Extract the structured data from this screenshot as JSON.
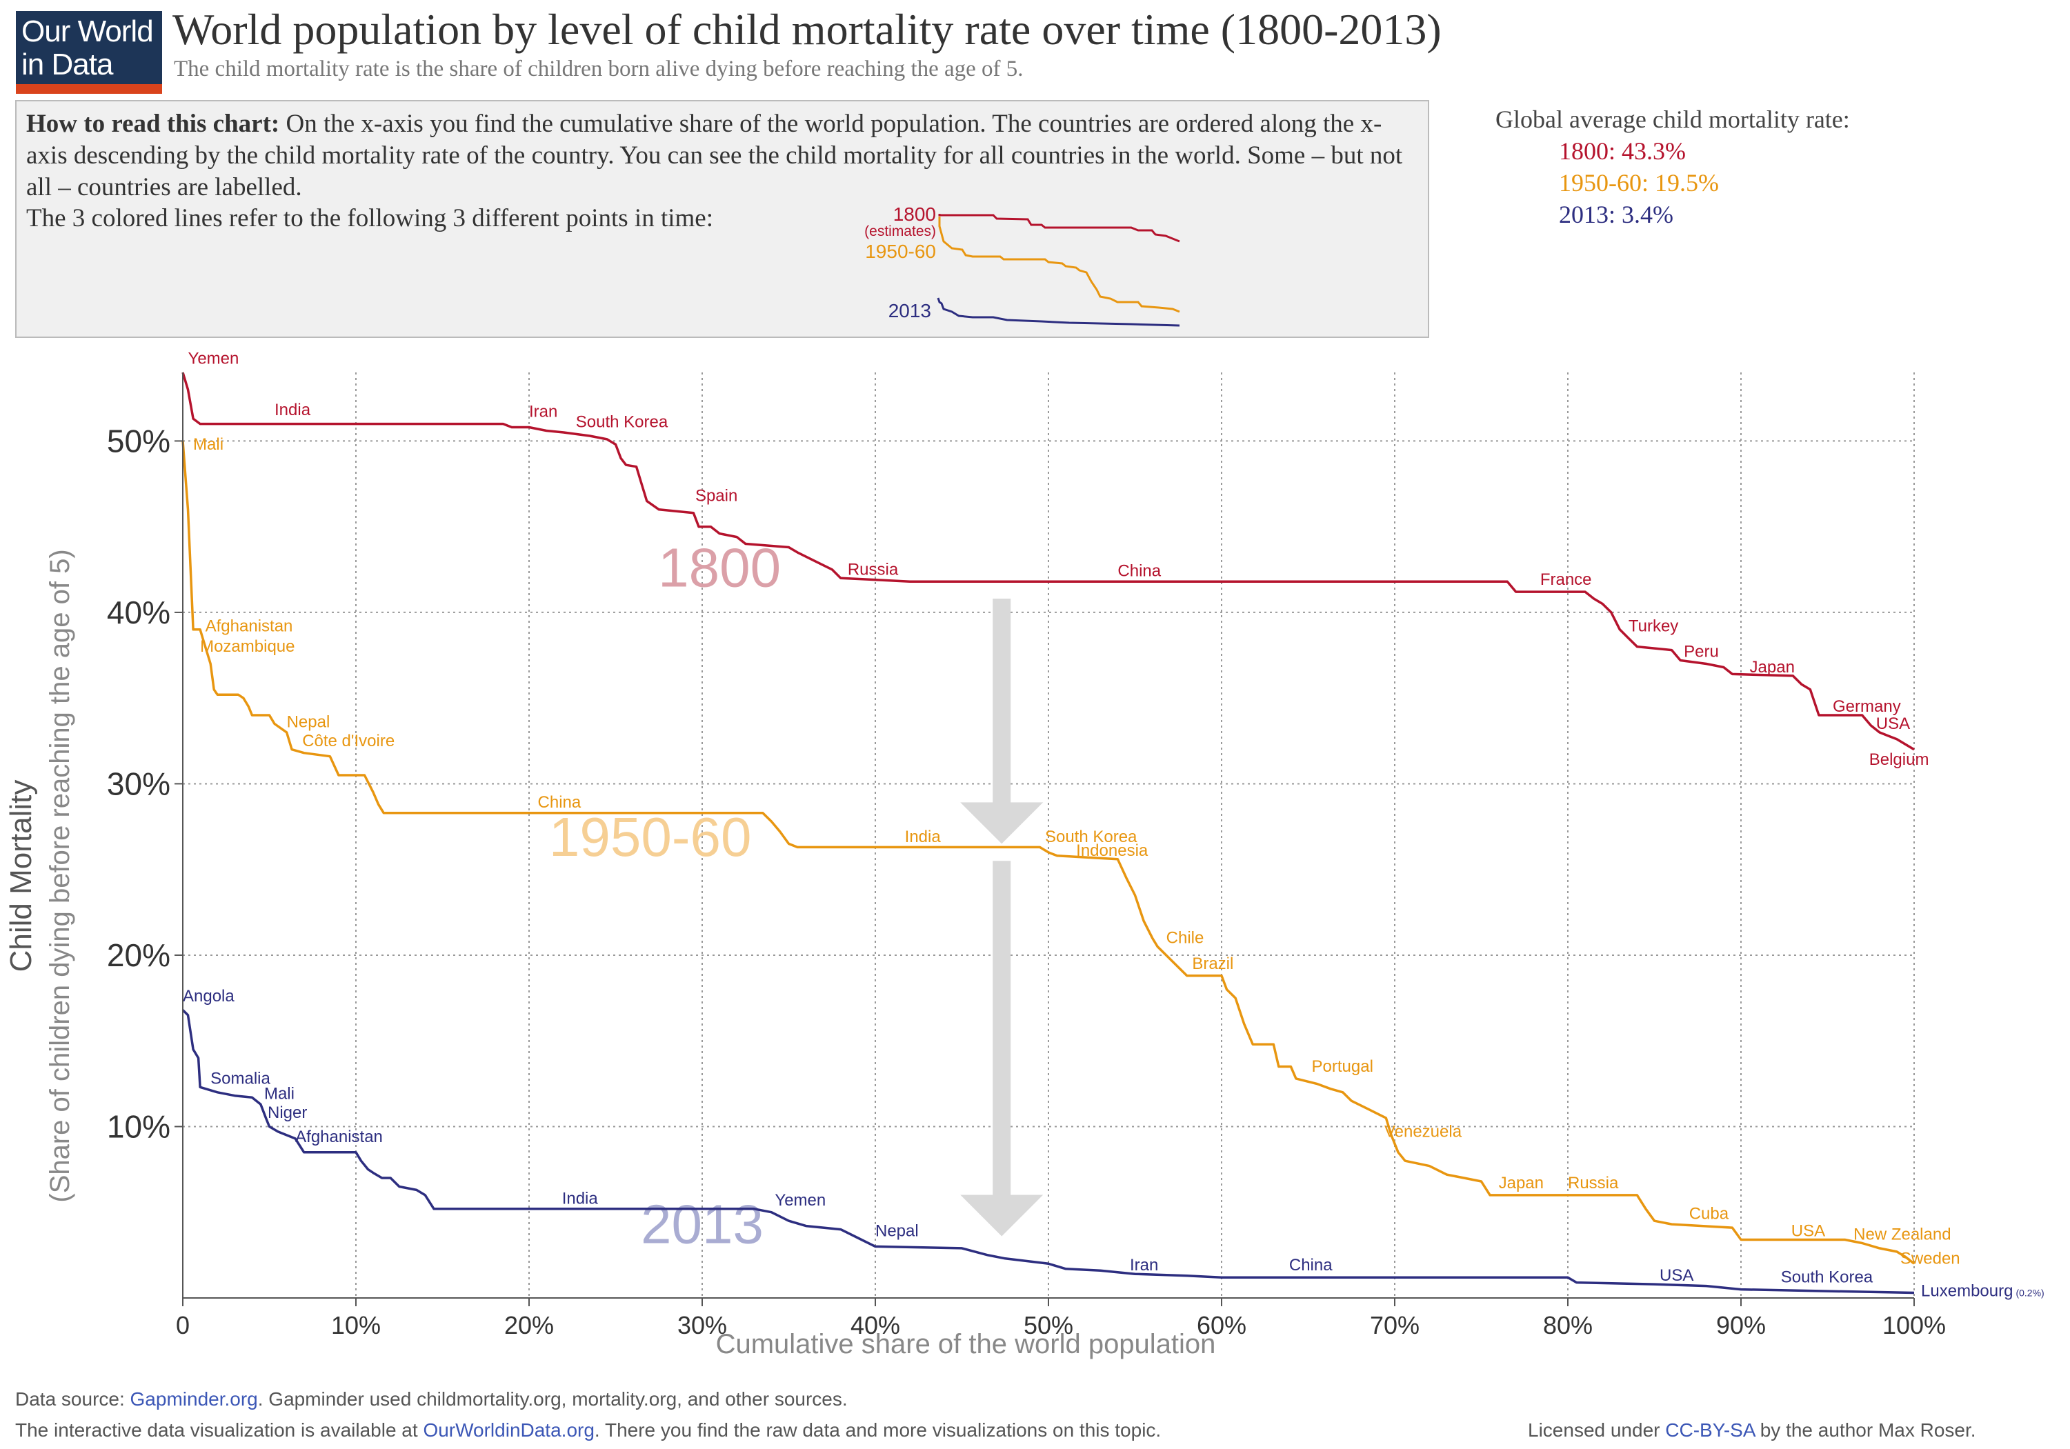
{
  "logo": {
    "line1": "Our World",
    "line2": "in Data"
  },
  "title": "World population by level of child mortality rate over time (1800-2013)",
  "subtitle": "The child mortality rate is the share of children born alive dying before reaching the age of 5.",
  "howto": {
    "bold": "How to read this chart:",
    "text": " On the x-axis you find the cumulative share of the world population. The countries are ordered along the x-axis descending by the child mortality rate of the country. You can see the child mortality for all countries in the world. Some – but not all – countries are labelled.",
    "line3": "The 3 colored lines refer to the following 3 different points in time:",
    "legend": {
      "l1800": "1800",
      "estimates": "(estimates)",
      "l1950": "1950-60",
      "l2013": "2013"
    }
  },
  "global_avg": {
    "heading": "Global average child mortality rate:",
    "v1800": "1800: 43.3%",
    "v1950": "1950-60: 19.5%",
    "v2013": "2013: 3.4%"
  },
  "colors": {
    "s1800": "#b5132d",
    "s1950": "#e89610",
    "s2013": "#2d2e80",
    "big1800": "#dba0a8",
    "big1950": "#f6cf94",
    "big2013": "#a9acd2",
    "arrow": "#d9d9d9"
  },
  "chart_data": {
    "type": "line",
    "xlabel": "Cumulative share of the world population",
    "ylabel": "Child Mortality",
    "ylabel2": "(Share of children dying before reaching the age of 5)",
    "xlim": [
      0,
      100
    ],
    "ylim": [
      0,
      54
    ],
    "grid": true,
    "x_ticks": [
      "0",
      "10%",
      "20%",
      "30%",
      "40%",
      "50%",
      "60%",
      "70%",
      "80%",
      "90%",
      "100%"
    ],
    "y_ticks": [
      {
        "v": 10,
        "label": "10%"
      },
      {
        "v": 20,
        "label": "20%"
      },
      {
        "v": 30,
        "label": "30%"
      },
      {
        "v": 40,
        "label": "40%"
      },
      {
        "v": 50,
        "label": "50%"
      }
    ],
    "big_labels": [
      {
        "text": "1800",
        "x": 31,
        "y": 41.5,
        "series": "1800"
      },
      {
        "text": "1950-60",
        "x": 27,
        "y": 25.8,
        "series": "1950-60"
      },
      {
        "text": "2013",
        "x": 30,
        "y": 3.2,
        "series": "2013"
      }
    ],
    "series": [
      {
        "name": "1800",
        "points": [
          [
            0,
            54
          ],
          [
            0.3,
            53
          ],
          [
            0.6,
            51.3
          ],
          [
            1,
            51
          ],
          [
            18.5,
            51
          ],
          [
            19,
            50.8
          ],
          [
            20,
            50.8
          ],
          [
            21,
            50.6
          ],
          [
            22,
            50.5
          ],
          [
            23.5,
            50.3
          ],
          [
            24.5,
            50.1
          ],
          [
            25,
            49.8
          ],
          [
            25.3,
            49
          ],
          [
            25.6,
            48.6
          ],
          [
            26.2,
            48.5
          ],
          [
            26.5,
            47.5
          ],
          [
            26.8,
            46.5
          ],
          [
            27.5,
            46
          ],
          [
            29.5,
            45.8
          ],
          [
            29.8,
            45
          ],
          [
            30.5,
            45
          ],
          [
            31,
            44.6
          ],
          [
            32,
            44.4
          ],
          [
            32.5,
            44
          ],
          [
            35,
            43.8
          ],
          [
            35.5,
            43.5
          ],
          [
            36.5,
            43
          ],
          [
            37.5,
            42.5
          ],
          [
            38,
            42
          ],
          [
            42,
            41.8
          ],
          [
            76.5,
            41.8
          ],
          [
            77,
            41.2
          ],
          [
            81,
            41.2
          ],
          [
            81.5,
            40.8
          ],
          [
            82,
            40.5
          ],
          [
            82.5,
            40
          ],
          [
            83,
            39
          ],
          [
            83.5,
            38.5
          ],
          [
            84,
            38
          ],
          [
            86,
            37.8
          ],
          [
            86.5,
            37.2
          ],
          [
            88,
            37
          ],
          [
            89,
            36.8
          ],
          [
            89.5,
            36.4
          ],
          [
            93,
            36.3
          ],
          [
            93.5,
            35.8
          ],
          [
            94,
            35.5
          ],
          [
            94.5,
            34
          ],
          [
            97,
            34
          ],
          [
            97.5,
            33.4
          ],
          [
            98,
            33
          ],
          [
            98.5,
            32.8
          ],
          [
            99,
            32.6
          ],
          [
            99.5,
            32.3
          ],
          [
            100,
            32
          ]
        ],
        "labels": [
          {
            "text": "Yemen",
            "x": 0.3,
            "y": 54.5,
            "anchor": "start"
          },
          {
            "text": "India",
            "x": 5.3,
            "y": 51.5,
            "anchor": "start"
          },
          {
            "text": "Iran",
            "x": 20.0,
            "y": 51.4,
            "anchor": "start"
          },
          {
            "text": "South Korea",
            "x": 22.7,
            "y": 50.8,
            "anchor": "start"
          },
          {
            "text": "Spain",
            "x": 29.6,
            "y": 46.5,
            "anchor": "start"
          },
          {
            "text": "Russia",
            "x": 38.4,
            "y": 42.2,
            "anchor": "start"
          },
          {
            "text": "China",
            "x": 54.0,
            "y": 42.1,
            "anchor": "start"
          },
          {
            "text": "France",
            "x": 78.4,
            "y": 41.6,
            "anchor": "start"
          },
          {
            "text": "Turkey",
            "x": 83.5,
            "y": 38.9,
            "anchor": "start"
          },
          {
            "text": "Peru",
            "x": 86.7,
            "y": 37.4,
            "anchor": "start"
          },
          {
            "text": "Japan",
            "x": 90.5,
            "y": 36.5,
            "anchor": "start"
          },
          {
            "text": "Germany",
            "x": 95.3,
            "y": 34.2,
            "anchor": "start"
          },
          {
            "text": "USA",
            "x": 97.8,
            "y": 33.2,
            "anchor": "start"
          },
          {
            "text": "Belgium",
            "x": 97.4,
            "y": 31.1,
            "anchor": "start"
          }
        ]
      },
      {
        "name": "1950-60",
        "points": [
          [
            0,
            50
          ],
          [
            0.3,
            46
          ],
          [
            0.6,
            39
          ],
          [
            1,
            39
          ],
          [
            1.3,
            38
          ],
          [
            1.6,
            37
          ],
          [
            1.8,
            35.5
          ],
          [
            2,
            35.2
          ],
          [
            3.2,
            35.2
          ],
          [
            3.5,
            35
          ],
          [
            3.8,
            34.5
          ],
          [
            4,
            34
          ],
          [
            5,
            34
          ],
          [
            5.3,
            33.5
          ],
          [
            6,
            33
          ],
          [
            6.3,
            32
          ],
          [
            7,
            31.8
          ],
          [
            8.5,
            31.6
          ],
          [
            9,
            30.5
          ],
          [
            10.5,
            30.5
          ],
          [
            11,
            29.5
          ],
          [
            11.3,
            28.8
          ],
          [
            11.6,
            28.3
          ],
          [
            33.5,
            28.3
          ],
          [
            34,
            27.8
          ],
          [
            34.5,
            27.2
          ],
          [
            35,
            26.5
          ],
          [
            35.5,
            26.3
          ],
          [
            49.5,
            26.3
          ],
          [
            50,
            26
          ],
          [
            50.5,
            25.8
          ],
          [
            54,
            25.6
          ],
          [
            54.5,
            24.5
          ],
          [
            55,
            23.5
          ],
          [
            55.5,
            22
          ],
          [
            56,
            21
          ],
          [
            56.3,
            20.5
          ],
          [
            56.8,
            20
          ],
          [
            57.3,
            19.5
          ],
          [
            58,
            18.8
          ],
          [
            60,
            18.8
          ],
          [
            60.3,
            18
          ],
          [
            60.8,
            17.5
          ],
          [
            61.3,
            16
          ],
          [
            61.8,
            14.8
          ],
          [
            63,
            14.8
          ],
          [
            63.3,
            13.5
          ],
          [
            64,
            13.5
          ],
          [
            64.3,
            12.8
          ],
          [
            65.5,
            12.5
          ],
          [
            66.3,
            12.2
          ],
          [
            67,
            12
          ],
          [
            67.5,
            11.5
          ],
          [
            68.5,
            11
          ],
          [
            69.5,
            10.5
          ],
          [
            69.8,
            9.5
          ],
          [
            70.2,
            8.5
          ],
          [
            70.6,
            8
          ],
          [
            72,
            7.7
          ],
          [
            73,
            7.2
          ],
          [
            74,
            7
          ],
          [
            75,
            6.8
          ],
          [
            75.5,
            6
          ],
          [
            84,
            6
          ],
          [
            84.5,
            5.2
          ],
          [
            85,
            4.5
          ],
          [
            86,
            4.3
          ],
          [
            89.5,
            4.1
          ],
          [
            90,
            3.4
          ],
          [
            96,
            3.4
          ],
          [
            97,
            3.2
          ],
          [
            98,
            2.9
          ],
          [
            99,
            2.7
          ],
          [
            99.5,
            2.4
          ],
          [
            100,
            2
          ]
        ],
        "labels": [
          {
            "text": "Mali",
            "x": 0.6,
            "y": 49.5,
            "anchor": "start"
          },
          {
            "text": "Afghanistan",
            "x": 1.3,
            "y": 38.9,
            "anchor": "start"
          },
          {
            "text": "Mozambique",
            "x": 1.0,
            "y": 37.7,
            "anchor": "start"
          },
          {
            "text": "Nepal",
            "x": 6.0,
            "y": 33.3,
            "anchor": "start"
          },
          {
            "text": "Côte d'Ivoire",
            "x": 6.9,
            "y": 32.2,
            "anchor": "start"
          },
          {
            "text": "China",
            "x": 20.5,
            "y": 28.6,
            "anchor": "start"
          },
          {
            "text": "India",
            "x": 41.7,
            "y": 26.6,
            "anchor": "start"
          },
          {
            "text": "South Korea",
            "x": 49.8,
            "y": 26.6,
            "anchor": "start"
          },
          {
            "text": "Indonesia",
            "x": 51.6,
            "y": 25.8,
            "anchor": "start"
          },
          {
            "text": "Chile",
            "x": 56.8,
            "y": 20.7,
            "anchor": "start"
          },
          {
            "text": "Brazil",
            "x": 58.3,
            "y": 19.2,
            "anchor": "start"
          },
          {
            "text": "Portugal",
            "x": 65.2,
            "y": 13.2,
            "anchor": "start"
          },
          {
            "text": "Venezuela",
            "x": 69.4,
            "y": 9.4,
            "anchor": "start"
          },
          {
            "text": "Japan",
            "x": 76.0,
            "y": 6.4,
            "anchor": "start"
          },
          {
            "text": "Russia",
            "x": 80.0,
            "y": 6.4,
            "anchor": "start"
          },
          {
            "text": "Cuba",
            "x": 87.0,
            "y": 4.6,
            "anchor": "start"
          },
          {
            "text": "USA",
            "x": 92.9,
            "y": 3.6,
            "anchor": "start"
          },
          {
            "text": "New Zealand",
            "x": 96.5,
            "y": 3.4,
            "anchor": "start"
          },
          {
            "text": "Sweden",
            "x": 99.2,
            "y": 2.0,
            "anchor": "start"
          }
        ]
      },
      {
        "name": "2013",
        "points": [
          [
            0,
            16.8
          ],
          [
            0.3,
            16.5
          ],
          [
            0.6,
            14.5
          ],
          [
            0.9,
            14
          ],
          [
            1,
            12.3
          ],
          [
            2,
            12
          ],
          [
            3,
            11.8
          ],
          [
            4,
            11.7
          ],
          [
            4.5,
            11.3
          ],
          [
            4.8,
            10.5
          ],
          [
            5,
            10
          ],
          [
            5.5,
            9.7
          ],
          [
            6.5,
            9.3
          ],
          [
            7,
            8.5
          ],
          [
            10,
            8.5
          ],
          [
            10.3,
            8
          ],
          [
            10.7,
            7.5
          ],
          [
            11,
            7.3
          ],
          [
            11.5,
            7
          ],
          [
            12,
            7
          ],
          [
            12.5,
            6.5
          ],
          [
            13.5,
            6.3
          ],
          [
            14,
            6
          ],
          [
            14.5,
            5.2
          ],
          [
            15,
            5.2
          ],
          [
            33,
            5.2
          ],
          [
            34,
            5
          ],
          [
            35,
            4.5
          ],
          [
            36,
            4.2
          ],
          [
            38,
            4
          ],
          [
            39,
            3.5
          ],
          [
            40,
            3
          ],
          [
            45,
            2.9
          ],
          [
            46.5,
            2.5
          ],
          [
            47.5,
            2.3
          ],
          [
            50,
            2
          ],
          [
            51,
            1.7
          ],
          [
            53,
            1.6
          ],
          [
            55,
            1.4
          ],
          [
            58,
            1.3
          ],
          [
            60,
            1.2
          ],
          [
            80,
            1.2
          ],
          [
            80.5,
            0.9
          ],
          [
            85,
            0.8
          ],
          [
            88,
            0.7
          ],
          [
            90,
            0.5
          ],
          [
            95,
            0.4
          ],
          [
            100,
            0.3
          ]
        ],
        "labels": [
          {
            "text": "Angola",
            "x": 0.0,
            "y": 17.3,
            "anchor": "start"
          },
          {
            "text": "Somalia",
            "x": 1.6,
            "y": 12.5,
            "anchor": "start"
          },
          {
            "text": "Mali",
            "x": 4.7,
            "y": 11.6,
            "anchor": "start"
          },
          {
            "text": "Niger",
            "x": 4.9,
            "y": 10.5,
            "anchor": "start"
          },
          {
            "text": "Afghanistan",
            "x": 6.5,
            "y": 9.1,
            "anchor": "start"
          },
          {
            "text": "India",
            "x": 21.9,
            "y": 5.5,
            "anchor": "start"
          },
          {
            "text": "Yemen",
            "x": 34.2,
            "y": 5.4,
            "anchor": "start"
          },
          {
            "text": "Nepal",
            "x": 40.0,
            "y": 3.6,
            "anchor": "start"
          },
          {
            "text": "Iran",
            "x": 54.7,
            "y": 1.6,
            "anchor": "start"
          },
          {
            "text": "China",
            "x": 63.9,
            "y": 1.6,
            "anchor": "start"
          },
          {
            "text": "USA",
            "x": 85.3,
            "y": 1.0,
            "anchor": "start"
          },
          {
            "text": "South Korea",
            "x": 92.3,
            "y": 0.9,
            "anchor": "start"
          },
          {
            "text": "Luxembourg",
            "x": 100.4,
            "y": 0.1,
            "anchor": "start"
          }
        ],
        "footnote": "(0.2%)"
      }
    ]
  },
  "footer": {
    "src_pre": "Data source: ",
    "src_link": "Gapminder.org",
    "src_post": ". Gapminder used childmortality.org, mortality.org, and other sources.",
    "viz_pre": "The interactive data visualization is available at ",
    "viz_link": "OurWorldinData.org",
    "viz_post": ". There you find the raw data and more visualizations on this topic.",
    "lic_pre": "Licensed under ",
    "lic_link": "CC-BY-SA",
    "lic_post": " by the author Max Roser."
  }
}
